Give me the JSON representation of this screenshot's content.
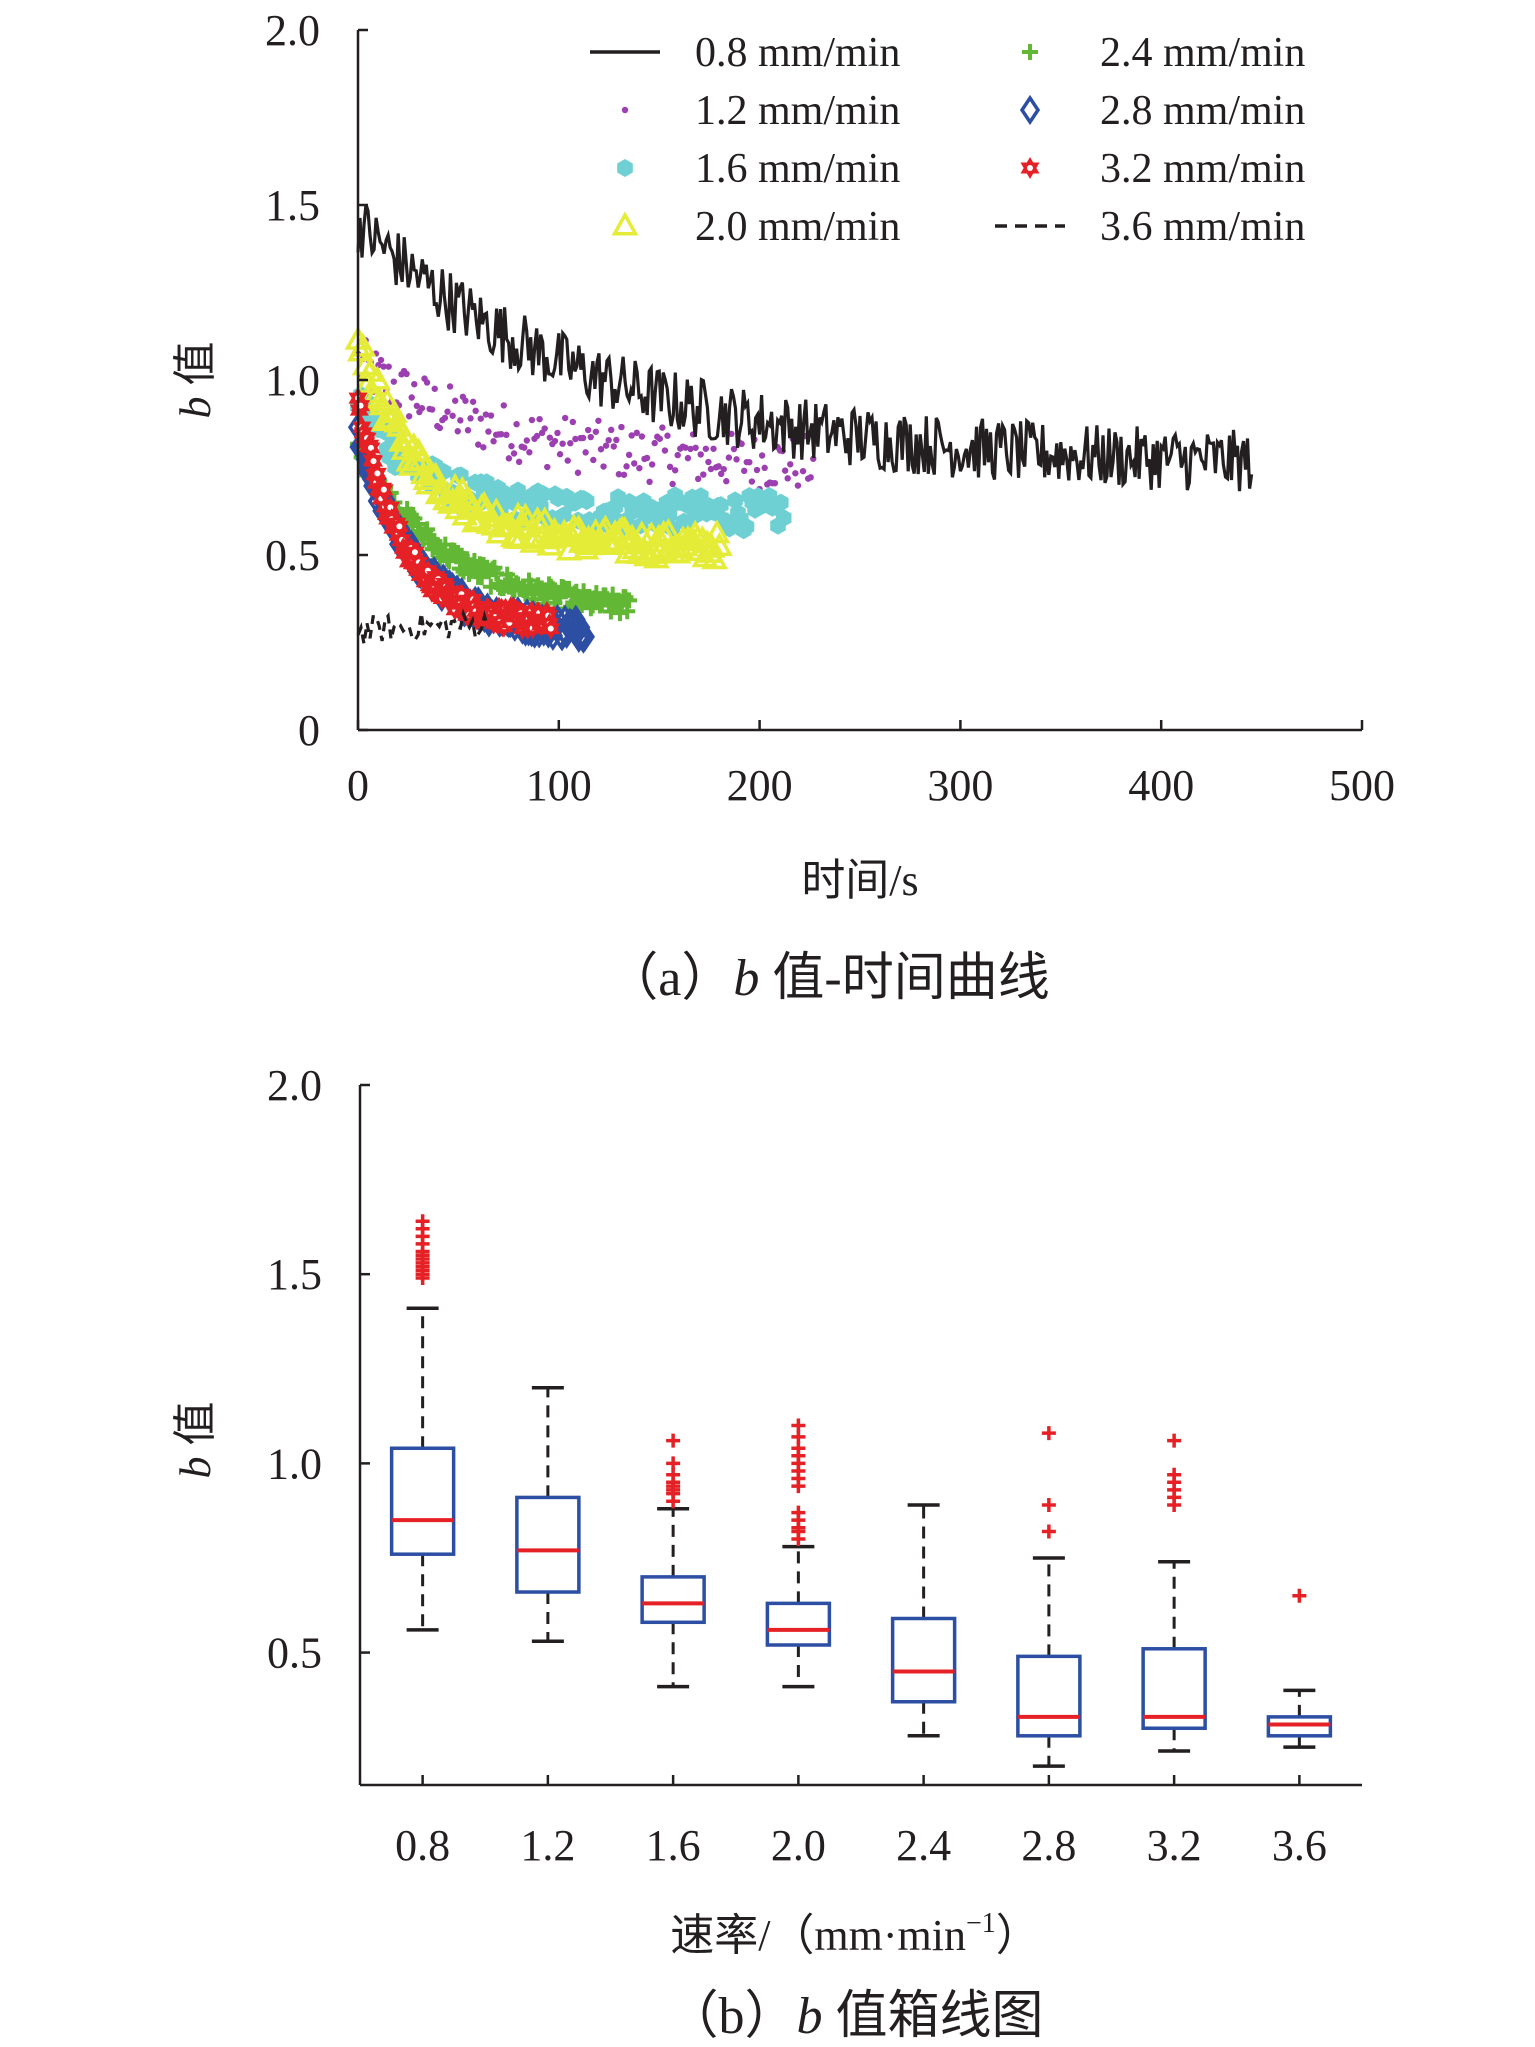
{
  "chart_data": [
    {
      "type": "scatter",
      "xlabel": "时间/s",
      "ylabel": "b 值",
      "caption": "（a）b 值-时间曲线",
      "xlim": [
        0,
        500
      ],
      "ylim": [
        0,
        2.0
      ],
      "xticks": [
        "0",
        "100",
        "200",
        "300",
        "400",
        "500"
      ],
      "yticks": [
        "0",
        "0.5",
        "1.0",
        "1.5",
        "2.0"
      ],
      "legend_position": "top-right",
      "series": [
        {
          "name": "0.8 mm/min",
          "marker": "solid-line",
          "color": "#231f20",
          "x_range": [
            0,
            445
          ],
          "start": 1.45,
          "end": 0.75,
          "tau": 120,
          "noise": 0.09
        },
        {
          "name": "1.2 mm/min",
          "marker": "dot",
          "color": "#9b3fb1",
          "x_range": [
            0,
            228
          ],
          "start": 1.05,
          "end": 0.75,
          "tau": 70,
          "noise": 0.08
        },
        {
          "name": "1.6 mm/min",
          "marker": "hexagon",
          "color": "#6fd0d3",
          "x_range": [
            0,
            212
          ],
          "start": 0.95,
          "end": 0.62,
          "tau": 30,
          "noise": 0.05
        },
        {
          "name": "2.0 mm/min",
          "marker": "triangle",
          "color": "#e5ec38",
          "x_range": [
            0,
            180
          ],
          "start": 1.1,
          "end": 0.52,
          "tau": 35,
          "noise": 0.04
        },
        {
          "name": "2.4 mm/min",
          "marker": "plus",
          "color": "#62b834",
          "x_range": [
            0,
            135
          ],
          "start": 0.8,
          "end": 0.33,
          "tau": 45,
          "noise": 0.03
        },
        {
          "name": "2.8 mm/min",
          "marker": "diamond",
          "color": "#2c4ea3",
          "x_range": [
            0,
            113
          ],
          "start": 0.85,
          "end": 0.28,
          "tau": 28,
          "noise": 0.03
        },
        {
          "name": "3.2 mm/min",
          "marker": "star",
          "color": "#e52126",
          "x_range": [
            0,
            96
          ],
          "start": 0.95,
          "end": 0.3,
          "tau": 22,
          "noise": 0.03
        },
        {
          "name": "3.6 mm/min",
          "marker": "dashed-line",
          "color": "#231f20",
          "x_range": [
            0,
            65
          ],
          "start": 0.28,
          "end": 0.3,
          "tau": 20,
          "noise": 0.04
        }
      ]
    },
    {
      "type": "box",
      "xlabel": "速率/（mm·min⁻¹）",
      "ylabel": "b 值",
      "caption": "（b）b 值箱线图",
      "ylim": [
        0.15,
        2.0
      ],
      "yticks": [
        "0.5",
        "1.0",
        "1.5",
        "2.0"
      ],
      "categories": [
        "0.8",
        "1.2",
        "1.6",
        "2.0",
        "2.4",
        "2.8",
        "3.2",
        "3.6"
      ],
      "boxes": [
        {
          "whisker_low": 0.56,
          "q1": 0.76,
          "median": 0.85,
          "q3": 1.04,
          "whisker_high": 1.41,
          "outliers": [
            1.49,
            1.5,
            1.51,
            1.52,
            1.53,
            1.54,
            1.55,
            1.56,
            1.58,
            1.6,
            1.62,
            1.64
          ]
        },
        {
          "whisker_low": 0.53,
          "q1": 0.66,
          "median": 0.77,
          "q3": 0.91,
          "whisker_high": 1.2,
          "outliers": []
        },
        {
          "whisker_low": 0.41,
          "q1": 0.58,
          "median": 0.63,
          "q3": 0.7,
          "whisker_high": 0.88,
          "outliers": [
            0.9,
            0.92,
            0.93,
            0.94,
            0.95,
            0.97,
            1.0,
            1.06
          ]
        },
        {
          "whisker_low": 0.41,
          "q1": 0.52,
          "median": 0.56,
          "q3": 0.63,
          "whisker_high": 0.78,
          "outliers": [
            0.8,
            0.82,
            0.83,
            0.85,
            0.87,
            0.94,
            0.96,
            0.98,
            1.0,
            1.02,
            1.04,
            1.07,
            1.1
          ]
        },
        {
          "whisker_low": 0.28,
          "q1": 0.37,
          "median": 0.45,
          "q3": 0.59,
          "whisker_high": 0.89,
          "outliers": []
        },
        {
          "whisker_low": 0.2,
          "q1": 0.28,
          "median": 0.33,
          "q3": 0.49,
          "whisker_high": 0.75,
          "outliers": [
            0.82,
            0.89,
            1.08
          ]
        },
        {
          "whisker_low": 0.24,
          "q1": 0.3,
          "median": 0.33,
          "q3": 0.51,
          "whisker_high": 0.74,
          "outliers": [
            0.89,
            0.91,
            0.93,
            0.95,
            0.97,
            1.06
          ]
        },
        {
          "whisker_low": 0.25,
          "q1": 0.28,
          "median": 0.31,
          "q3": 0.33,
          "whisker_high": 0.4,
          "outliers": [
            0.65
          ]
        }
      ],
      "colors": {
        "box": "#2c4ea3",
        "median": "#e52126",
        "whisker": "#231f20",
        "outlier": "#e52126"
      }
    }
  ]
}
